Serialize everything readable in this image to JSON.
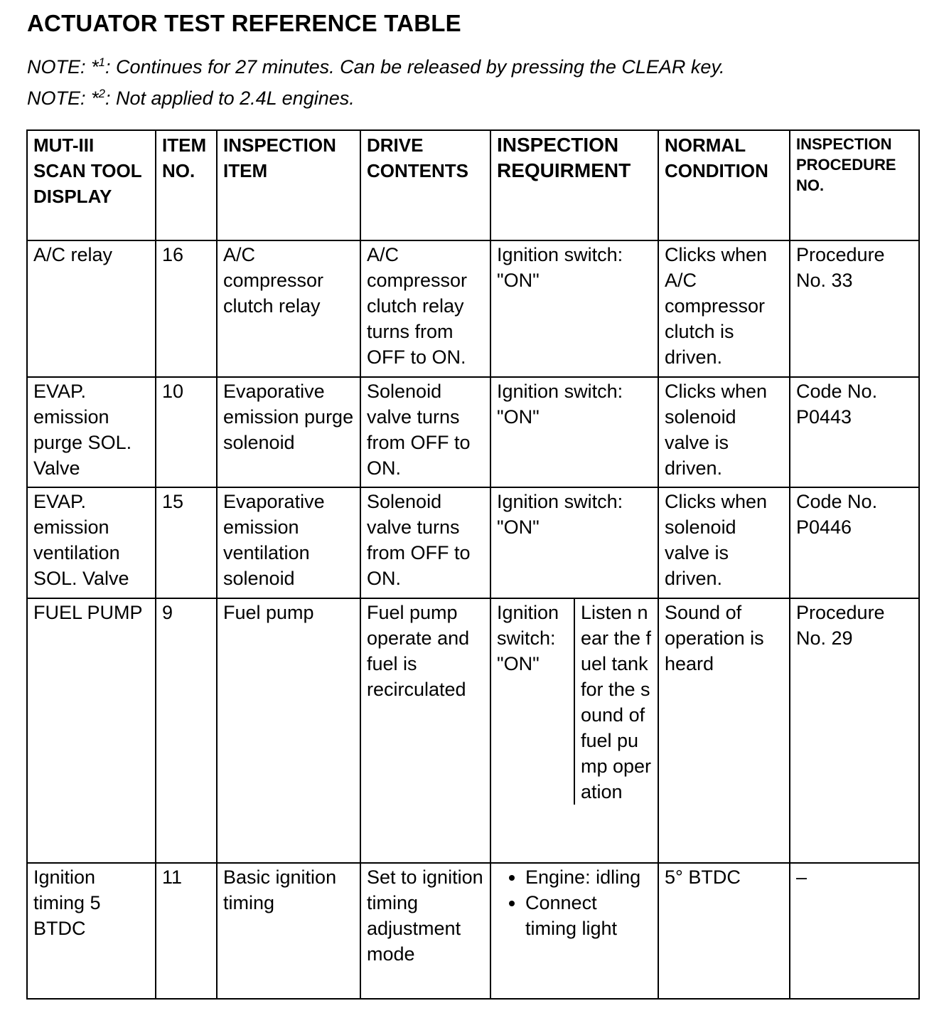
{
  "title": "ACTUATOR TEST REFERENCE TABLE",
  "notes": [
    {
      "prefix": "NOTE: *",
      "sup": "1",
      "text": ": Continues for 27 minutes. Can be released by pressing the CLEAR key."
    },
    {
      "prefix": "NOTE: *",
      "sup": "2",
      "text": ": Not applied to 2.4L engines."
    }
  ],
  "table": {
    "headers": [
      "MUT-III SCAN TOOL DISPLAY",
      "ITEM NO.",
      "INSPECTION ITEM",
      "DRIVE CONTENTS",
      "INSPECTION REQUIRMENT",
      "NORMAL CONDITION",
      "INSPECTION PROCEDURE NO."
    ],
    "rows": [
      {
        "display": "A/C relay",
        "item_no": "16",
        "inspection_item": "A/C compressor clutch relay",
        "drive_contents": "A/C compressor clutch relay turns from OFF to ON.",
        "requirement": [
          "Ignition switch: \"ON\""
        ],
        "normal_condition": "Clicks when A/C compressor clutch is driven.",
        "procedure": "Procedure No. 33"
      },
      {
        "display": "EVAP. emission purge SOL. Valve",
        "item_no": "10",
        "inspection_item": "Evaporative emission purge solenoid",
        "drive_contents": "Solenoid valve turns from OFF to ON.",
        "requirement": [
          "Ignition switch: \"ON\""
        ],
        "normal_condition": "Clicks when solenoid valve is driven.",
        "procedure": "Code No. P0443"
      },
      {
        "display": "EVAP. emission ventilation SOL. Valve",
        "item_no": "15",
        "inspection_item": "Evaporative emission ventilation solenoid",
        "drive_contents": "Solenoid valve turns from OFF to ON.",
        "requirement": [
          "Ignition switch: \"ON\""
        ],
        "normal_condition": "Clicks when solenoid valve is driven.",
        "procedure": "Code No. P0446"
      },
      {
        "display": "FUEL PUMP",
        "item_no": "9",
        "inspection_item": "Fuel pump",
        "drive_contents": "Fuel pump operate and fuel is recirculated",
        "requirement_split": [
          "Ignition switch: \"ON\"",
          "Listen near the fuel tank for the sound of fuel pump operation"
        ],
        "normal_condition": "Sound of operation is heard",
        "procedure": "Procedure No. 29"
      },
      {
        "display": "Ignition timing 5 BTDC",
        "item_no": "11",
        "inspection_item": "Basic ignition timing",
        "drive_contents": "Set to ignition timing adjustment mode",
        "requirement_bullets": [
          "Engine: idling",
          "Connect timing light"
        ],
        "normal_condition": "5° BTDC",
        "procedure": "–"
      }
    ]
  }
}
